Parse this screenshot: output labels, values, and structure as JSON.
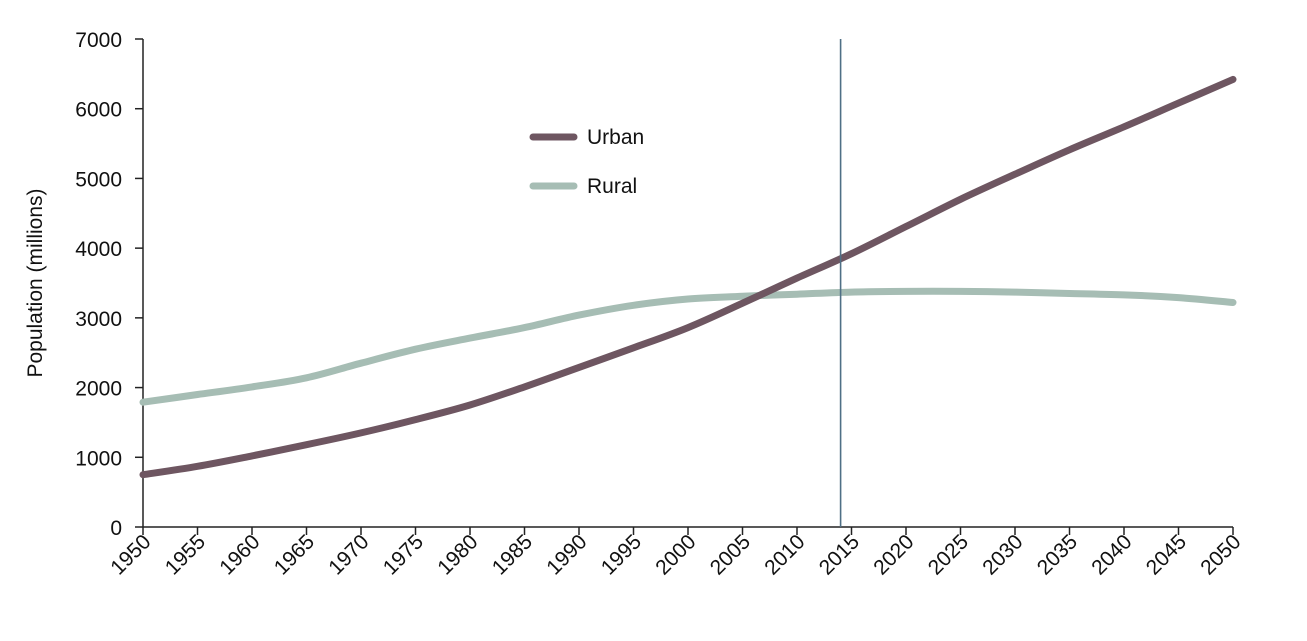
{
  "chart_data": {
    "type": "line",
    "title": "",
    "xlabel": "",
    "ylabel": "Population (millions)",
    "xlim": [
      1950,
      2050
    ],
    "ylim": [
      0,
      7000
    ],
    "x_ticks": [
      1950,
      1955,
      1960,
      1965,
      1970,
      1975,
      1980,
      1985,
      1990,
      1995,
      2000,
      2005,
      2010,
      2015,
      2020,
      2025,
      2030,
      2035,
      2040,
      2045,
      2050
    ],
    "y_ticks": [
      0,
      1000,
      2000,
      3000,
      4000,
      5000,
      6000,
      7000
    ],
    "grid": false,
    "legend_position": "top-center",
    "reference_line_x": 2014,
    "x": [
      1950,
      1955,
      1960,
      1965,
      1970,
      1975,
      1980,
      1985,
      1990,
      1995,
      2000,
      2005,
      2010,
      2015,
      2020,
      2025,
      2030,
      2035,
      2040,
      2045,
      2050
    ],
    "series": [
      {
        "name": "Urban",
        "color": "#6e5661",
        "values": [
          750,
          870,
          1020,
          1180,
          1350,
          1540,
          1750,
          2010,
          2290,
          2570,
          2860,
          3210,
          3570,
          3920,
          4310,
          4700,
          5060,
          5410,
          5740,
          6080,
          6420
        ]
      },
      {
        "name": "Rural",
        "color": "#a6bdb4",
        "values": [
          1790,
          1900,
          2010,
          2140,
          2350,
          2550,
          2710,
          2860,
          3040,
          3180,
          3270,
          3310,
          3340,
          3370,
          3380,
          3380,
          3370,
          3350,
          3330,
          3290,
          3220
        ]
      }
    ]
  }
}
